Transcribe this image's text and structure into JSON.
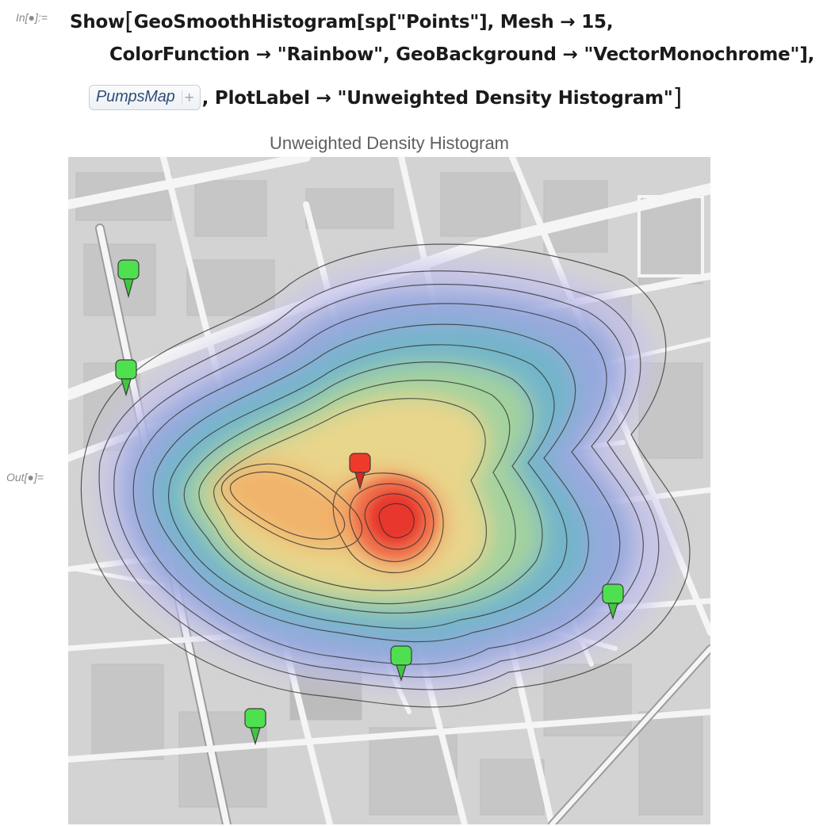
{
  "notebook": {
    "input_label": "In[●]:=",
    "output_label": "Out[●]=",
    "code": {
      "line1_head": "Show",
      "line1_body": "GeoSmoothHistogram[sp[\"Points\"], Mesh → 15,",
      "line2": "ColorFunction → \"Rainbow\", GeoBackground → \"VectorMonochrome\"],",
      "chip_label": "PumpsMap",
      "chip_plus": "+",
      "line3_rest": ", PlotLabel → \"Unweighted Density Histogram\""
    }
  },
  "plot": {
    "label": "Unweighted Density Histogram",
    "colors": {
      "map_background": "#d6d6d6",
      "building": "#c8c8c8",
      "street": "#f4f4f4",
      "contour": "#2b2b2b",
      "pump_green": "#4fe04f",
      "pump_red": "#ef3a2b"
    },
    "pumps": [
      {
        "name": "pump-1",
        "color": "green"
      },
      {
        "name": "pump-2",
        "color": "green"
      },
      {
        "name": "pump-3",
        "color": "red"
      },
      {
        "name": "pump-4",
        "color": "green"
      },
      {
        "name": "pump-5",
        "color": "green"
      },
      {
        "name": "pump-6",
        "color": "green"
      }
    ]
  }
}
